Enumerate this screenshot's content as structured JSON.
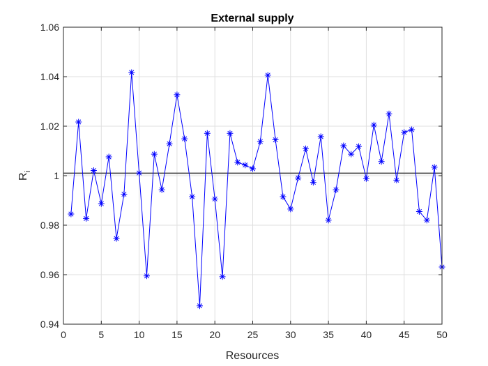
{
  "chart_data": {
    "type": "line",
    "title": "External supply",
    "xlabel": "Resources",
    "ylabel_main": "R",
    "ylabel_sub": "i",
    "xlim": [
      0,
      50
    ],
    "ylim": [
      0.94,
      1.06
    ],
    "xticks": [
      "0",
      "5",
      "10",
      "15",
      "20",
      "25",
      "30",
      "35",
      "40",
      "45",
      "50"
    ],
    "yticks": [
      "0.94",
      "0.96",
      "0.98",
      "1",
      "1.02",
      "1.04",
      "1.06"
    ],
    "grid": true,
    "series": [
      {
        "marker": "asterisk",
        "color": "#0000ff",
        "x": [
          1,
          2,
          3,
          4,
          5,
          6,
          7,
          8,
          9,
          10,
          11,
          12,
          13,
          14,
          15,
          16,
          17,
          18,
          19,
          20,
          21,
          22,
          23,
          24,
          25,
          26,
          27,
          28,
          29,
          30,
          31,
          32,
          33,
          34,
          35,
          36,
          37,
          38,
          39,
          40,
          41,
          42,
          43,
          44,
          45,
          46,
          47,
          48,
          49,
          50
        ],
        "y": [
          0.9845,
          1.0217,
          0.9827,
          1.0021,
          0.9887,
          1.0076,
          0.9746,
          0.9925,
          1.0417,
          1.0011,
          0.9595,
          1.0087,
          0.9943,
          1.0129,
          1.0327,
          1.0149,
          0.9915,
          0.9474,
          1.0171,
          0.9906,
          0.9592,
          1.0171,
          1.0054,
          1.0043,
          1.0028,
          1.0138,
          1.0406,
          1.0145,
          0.9915,
          0.9865,
          0.9991,
          1.0109,
          0.9973,
          1.0158,
          0.982,
          0.9943,
          1.0121,
          1.0087,
          1.0118,
          0.9988,
          1.0205,
          1.0057,
          1.025,
          0.9982,
          1.0175,
          1.0186,
          0.9855,
          0.982,
          1.0034,
          0.9631
        ]
      }
    ],
    "reference_line": {
      "y": 1.001,
      "color": "#404040"
    }
  }
}
